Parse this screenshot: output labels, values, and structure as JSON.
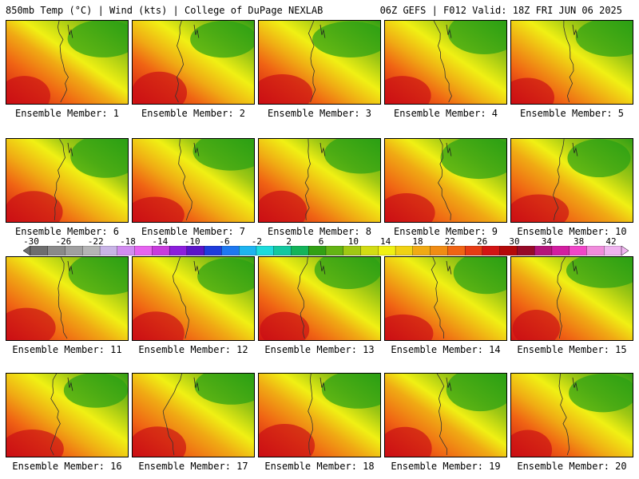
{
  "header": {
    "left": "850mb Temp (°C) | Wind (kts) | College of DuPage NEXLAB",
    "right": "06Z GEFS | F012 Valid: 18Z FRI JUN 06 2025"
  },
  "members": [
    {
      "label": "Ensemble Member: 1"
    },
    {
      "label": "Ensemble Member: 2"
    },
    {
      "label": "Ensemble Member: 3"
    },
    {
      "label": "Ensemble Member: 4"
    },
    {
      "label": "Ensemble Member: 5"
    },
    {
      "label": "Ensemble Member: 6"
    },
    {
      "label": "Ensemble Member: 7"
    },
    {
      "label": "Ensemble Member: 8"
    },
    {
      "label": "Ensemble Member: 9"
    },
    {
      "label": "Ensemble Member: 10"
    },
    {
      "label": "Ensemble Member: 11"
    },
    {
      "label": "Ensemble Member: 12"
    },
    {
      "label": "Ensemble Member: 13"
    },
    {
      "label": "Ensemble Member: 14"
    },
    {
      "label": "Ensemble Member: 15"
    },
    {
      "label": "Ensemble Member: 16"
    },
    {
      "label": "Ensemble Member: 17"
    },
    {
      "label": "Ensemble Member: 18"
    },
    {
      "label": "Ensemble Member: 19"
    },
    {
      "label": "Ensemble Member: 20"
    }
  ],
  "colorbar": {
    "labels": [
      "-30",
      "-26",
      "-22",
      "-18",
      "-14",
      "-10",
      "-6",
      "-2",
      "2",
      "6",
      "10",
      "14",
      "18",
      "22",
      "26",
      "30",
      "34",
      "38",
      "42"
    ],
    "colors": [
      "#6e6e6e",
      "#8a8a8a",
      "#a0a0a0",
      "#b4b4b4",
      "#c8b4e6",
      "#d28cf0",
      "#e664f0",
      "#c83cdc",
      "#8c1edc",
      "#5a14c8",
      "#1e3cdc",
      "#1e78f0",
      "#1eb4f0",
      "#1edcdc",
      "#14c8a0",
      "#14b45a",
      "#32a014",
      "#64b414",
      "#a0c814",
      "#d2dc14",
      "#f0f014",
      "#f0d214",
      "#f0aa14",
      "#f08c14",
      "#f06414",
      "#e63c14",
      "#d21414",
      "#b40a0a",
      "#960a28",
      "#b4147a",
      "#d21ea0",
      "#f046c8",
      "#f08cdc",
      "#f0b4f0"
    ]
  },
  "style": {
    "cold": "#28a014",
    "mid": "#f0f014",
    "warm": "#f08c14",
    "hot": "#d21414"
  }
}
